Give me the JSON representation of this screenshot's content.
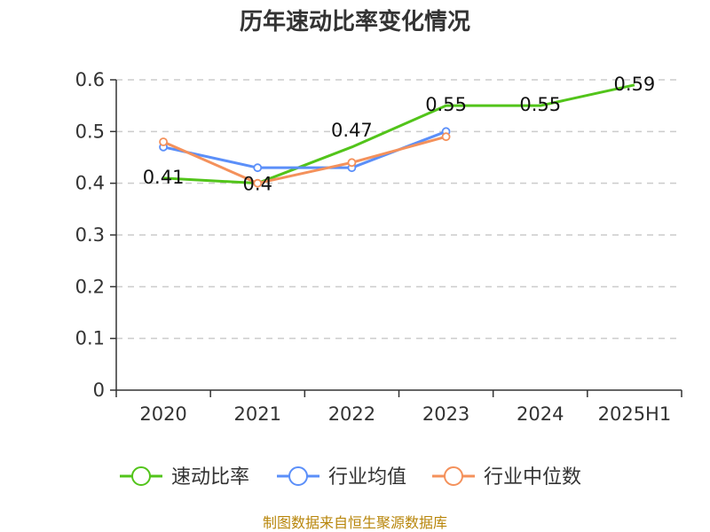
{
  "chart_data": {
    "type": "line",
    "title": "历年速动比率变化情况",
    "categories": [
      "2020",
      "2021",
      "2022",
      "2023",
      "2024",
      "2025H1"
    ],
    "ylim": [
      0,
      0.6
    ],
    "yticks": [
      "0",
      "0.1",
      "0.2",
      "0.3",
      "0.4",
      "0.5",
      "0.6"
    ],
    "grid": true,
    "legend_position": "bottom",
    "series": [
      {
        "name": "速动比率",
        "color": "#52c41a",
        "values": [
          0.41,
          0.4,
          0.47,
          0.55,
          0.55,
          0.59
        ],
        "labels": [
          "0.41",
          "0.4",
          "0.47",
          "0.55",
          "0.55",
          "0.59"
        ],
        "markers": false
      },
      {
        "name": "行业均值",
        "color": "#5b8ff9",
        "values": [
          0.47,
          0.43,
          0.43,
          0.5,
          null,
          null
        ],
        "markers": true
      },
      {
        "name": "行业中位数",
        "color": "#f4915b",
        "values": [
          0.48,
          0.4,
          0.44,
          0.49,
          null,
          null
        ],
        "markers": true
      }
    ]
  },
  "footer": {
    "source": "制图数据来自恒生聚源数据库"
  }
}
